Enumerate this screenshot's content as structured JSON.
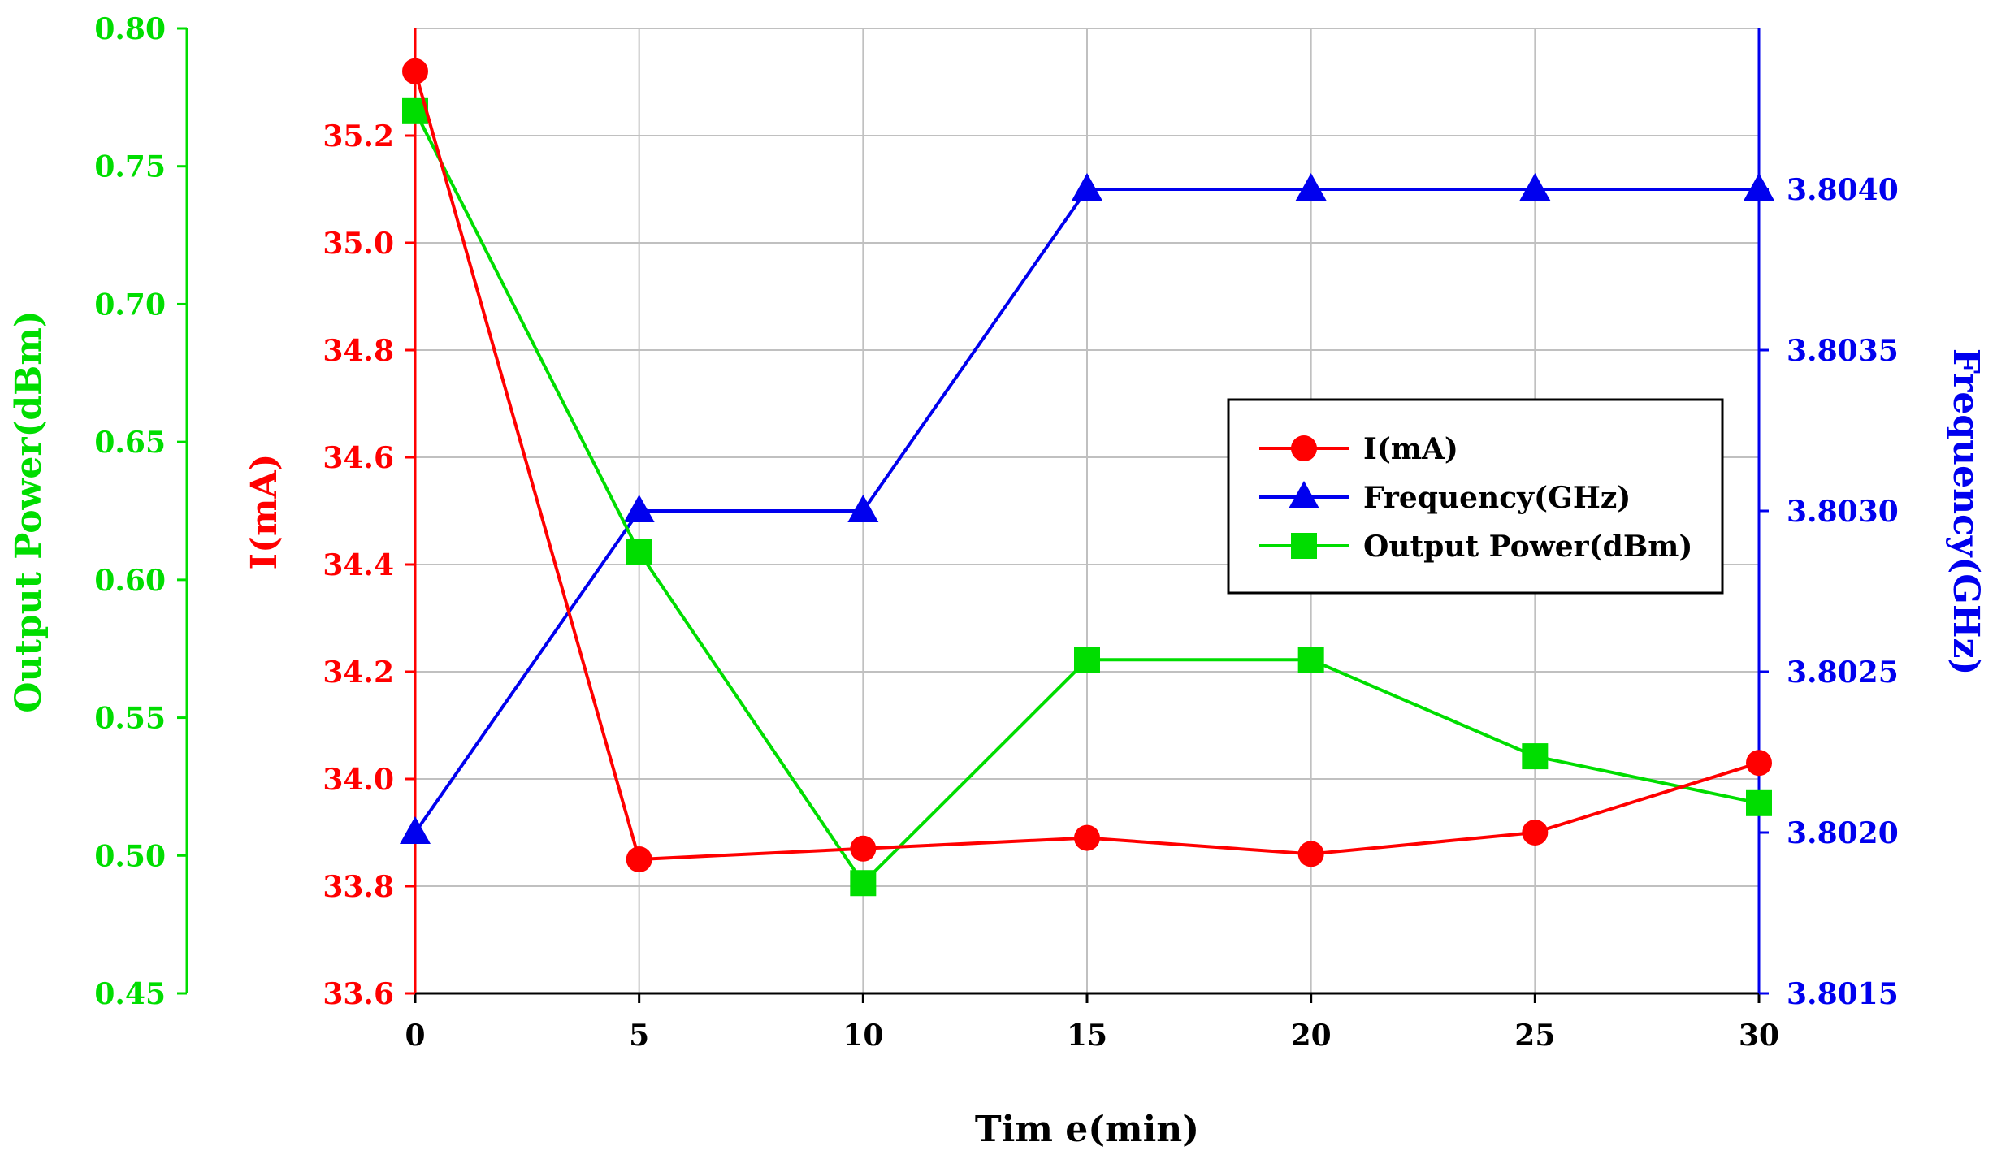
{
  "chart_data": {
    "type": "line",
    "x": [
      0,
      5,
      10,
      15,
      20,
      25,
      30
    ],
    "xlabel": "Tim e(min)",
    "xlim": [
      0,
      30
    ],
    "xticks": [
      "0",
      "5",
      "10",
      "15",
      "20",
      "25",
      "30"
    ],
    "grid": true,
    "legend_position": "center-right",
    "axes": {
      "current": {
        "label": "I(mA)",
        "side": "left-inner",
        "ylim": [
          33.6,
          35.4
        ],
        "ticks": [
          "33.6",
          "33.8",
          "34.0",
          "34.2",
          "34.4",
          "34.6",
          "34.8",
          "35.0",
          "35.2"
        ],
        "color": "#ff0000"
      },
      "power": {
        "label": "Output Power(dBm)",
        "side": "left-outer",
        "ylim": [
          0.45,
          0.8
        ],
        "ticks": [
          "0.45",
          "0.50",
          "0.55",
          "0.60",
          "0.65",
          "0.70",
          "0.75",
          "0.80"
        ],
        "color": "#00dd00"
      },
      "frequency": {
        "label": "Frequency(GHz)",
        "side": "right",
        "ylim": [
          3.8015,
          3.8045
        ],
        "ticks": [
          "3.8015",
          "3.8020",
          "3.8025",
          "3.8030",
          "3.8035",
          "3.8040"
        ],
        "color": "#0000ee"
      }
    },
    "series": [
      {
        "name": "I(mA)",
        "axis": "current",
        "marker": "circle",
        "color": "#ff0000",
        "values": [
          35.32,
          33.85,
          33.87,
          33.89,
          33.86,
          33.9,
          34.03
        ]
      },
      {
        "name": "Frequency(GHz)",
        "axis": "frequency",
        "marker": "triangle",
        "color": "#0000ee",
        "values": [
          3.802,
          3.803,
          3.803,
          3.804,
          3.804,
          3.804,
          3.804
        ]
      },
      {
        "name": "Output Power(dBm)",
        "axis": "power",
        "marker": "square",
        "color": "#00dd00",
        "values": [
          0.77,
          0.61,
          0.49,
          0.571,
          0.571,
          0.536,
          0.519
        ]
      }
    ]
  }
}
